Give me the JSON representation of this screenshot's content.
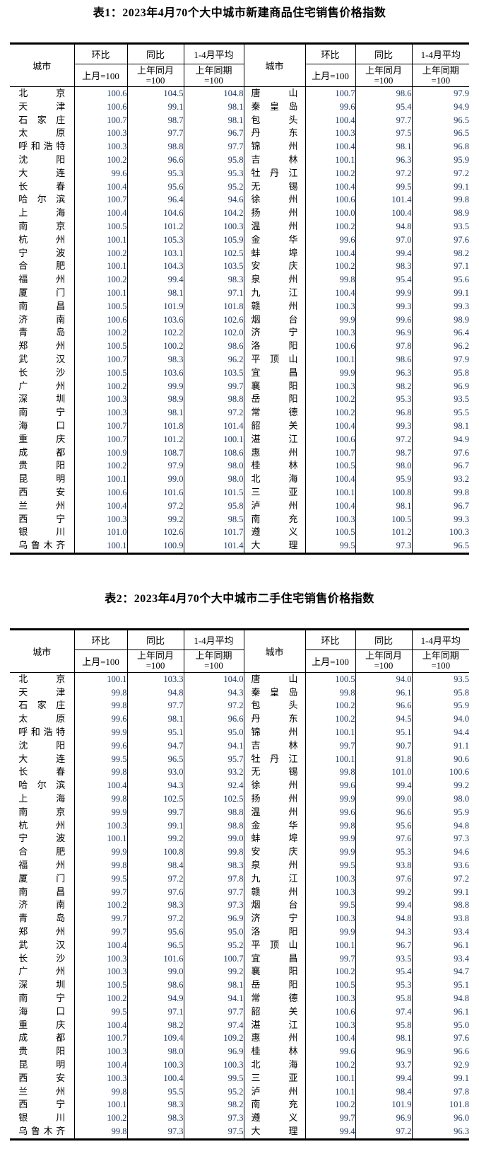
{
  "colors": {
    "background": "#ffffff",
    "text": "#000000",
    "number": "#1f3864",
    "border": "#000000"
  },
  "header_labels": {
    "city": "城市",
    "mom": "环比",
    "yoy": "同比",
    "avg": "1-4月平均",
    "mom_base": "上月=100",
    "yoy_base_line1": "上年同月",
    "yoy_base_line2": "=100",
    "avg_base_line1": "上年同期",
    "avg_base_line2": "=100"
  },
  "tables": [
    {
      "title": "表1：2023年4月70个大中城市新建商品住宅销售价格指数",
      "rows": [
        [
          "北京",
          "100.6",
          "104.5",
          "104.8",
          "唐山",
          "100.7",
          "98.6",
          "97.9"
        ],
        [
          "天津",
          "100.6",
          "99.1",
          "98.1",
          "秦皇岛",
          "99.6",
          "95.4",
          "94.9"
        ],
        [
          "石家庄",
          "100.7",
          "98.7",
          "98.1",
          "包头",
          "100.4",
          "97.7",
          "96.5"
        ],
        [
          "太原",
          "100.3",
          "97.7",
          "96.7",
          "丹东",
          "100.3",
          "97.5",
          "96.5"
        ],
        [
          "呼和浩特",
          "100.3",
          "98.8",
          "97.7",
          "锦州",
          "100.4",
          "98.1",
          "96.8"
        ],
        [
          "沈阳",
          "100.2",
          "96.6",
          "95.8",
          "吉林",
          "100.1",
          "96.3",
          "95.9"
        ],
        [
          "大连",
          "99.6",
          "95.3",
          "95.3",
          "牡丹江",
          "100.2",
          "97.2",
          "97.2"
        ],
        [
          "长春",
          "100.4",
          "95.6",
          "95.2",
          "无锡",
          "100.4",
          "99.5",
          "99.1"
        ],
        [
          "哈尔滨",
          "100.7",
          "96.4",
          "94.6",
          "徐州",
          "100.6",
          "101.4",
          "99.8"
        ],
        [
          "上海",
          "100.4",
          "104.6",
          "104.2",
          "扬州",
          "100.0",
          "100.4",
          "98.9"
        ],
        [
          "南京",
          "100.5",
          "101.2",
          "100.3",
          "温州",
          "100.2",
          "94.8",
          "93.5"
        ],
        [
          "杭州",
          "100.1",
          "105.3",
          "105.9",
          "金华",
          "99.6",
          "97.0",
          "97.6"
        ],
        [
          "宁波",
          "100.2",
          "103.1",
          "102.5",
          "蚌埠",
          "100.4",
          "99.4",
          "98.2"
        ],
        [
          "合肥",
          "100.1",
          "104.3",
          "103.5",
          "安庆",
          "100.2",
          "98.3",
          "97.1"
        ],
        [
          "福州",
          "100.2",
          "99.4",
          "98.3",
          "泉州",
          "99.8",
          "95.4",
          "95.6"
        ],
        [
          "厦门",
          "100.1",
          "98.1",
          "97.1",
          "九江",
          "100.4",
          "99.9",
          "99.1"
        ],
        [
          "南昌",
          "100.5",
          "101.9",
          "101.8",
          "赣州",
          "100.3",
          "99.3",
          "99.3"
        ],
        [
          "济南",
          "100.6",
          "103.6",
          "102.6",
          "烟台",
          "99.9",
          "99.6",
          "98.9"
        ],
        [
          "青岛",
          "100.2",
          "102.2",
          "102.0",
          "济宁",
          "100.3",
          "96.9",
          "96.4"
        ],
        [
          "郑州",
          "100.5",
          "100.2",
          "98.6",
          "洛阳",
          "100.6",
          "97.8",
          "96.2"
        ],
        [
          "武汉",
          "100.7",
          "98.3",
          "96.2",
          "平顶山",
          "100.1",
          "98.6",
          "97.9"
        ],
        [
          "长沙",
          "100.5",
          "103.6",
          "103.5",
          "宜昌",
          "99.9",
          "96.3",
          "95.8"
        ],
        [
          "广州",
          "100.2",
          "99.9",
          "99.7",
          "襄阳",
          "100.3",
          "98.2",
          "96.9"
        ],
        [
          "深圳",
          "100.3",
          "98.9",
          "98.8",
          "岳阳",
          "100.2",
          "95.3",
          "93.5"
        ],
        [
          "南宁",
          "100.3",
          "98.1",
          "97.2",
          "常德",
          "100.2",
          "96.8",
          "95.5"
        ],
        [
          "海口",
          "100.7",
          "101.8",
          "101.4",
          "韶关",
          "100.4",
          "99.3",
          "98.1"
        ],
        [
          "重庆",
          "100.7",
          "101.2",
          "100.1",
          "湛江",
          "100.6",
          "97.2",
          "94.9"
        ],
        [
          "成都",
          "100.9",
          "108.7",
          "108.6",
          "惠州",
          "100.7",
          "98.7",
          "97.6"
        ],
        [
          "贵阳",
          "100.2",
          "97.9",
          "98.0",
          "桂林",
          "100.5",
          "98.0",
          "96.7"
        ],
        [
          "昆明",
          "100.1",
          "99.0",
          "98.0",
          "北海",
          "100.4",
          "95.9",
          "93.2"
        ],
        [
          "西安",
          "100.6",
          "101.6",
          "101.5",
          "三亚",
          "100.1",
          "100.8",
          "99.8"
        ],
        [
          "兰州",
          "100.4",
          "97.2",
          "95.8",
          "泸州",
          "100.4",
          "98.1",
          "96.7"
        ],
        [
          "西宁",
          "100.3",
          "99.2",
          "98.5",
          "南充",
          "100.3",
          "100.5",
          "99.3"
        ],
        [
          "银川",
          "101.0",
          "102.6",
          "101.7",
          "遵义",
          "100.5",
          "101.2",
          "100.3"
        ],
        [
          "乌鲁木齐",
          "100.1",
          "100.9",
          "101.4",
          "大理",
          "99.5",
          "97.3",
          "96.5"
        ]
      ]
    },
    {
      "title": "表2：2023年4月70个大中城市二手住宅销售价格指数",
      "rows": [
        [
          "北京",
          "100.1",
          "103.3",
          "104.0",
          "唐山",
          "100.5",
          "94.0",
          "93.5"
        ],
        [
          "天津",
          "99.8",
          "94.8",
          "94.3",
          "秦皇岛",
          "99.8",
          "96.1",
          "95.8"
        ],
        [
          "石家庄",
          "99.8",
          "97.7",
          "97.2",
          "包头",
          "100.2",
          "96.6",
          "95.9"
        ],
        [
          "太原",
          "99.6",
          "98.1",
          "96.6",
          "丹东",
          "100.2",
          "94.5",
          "94.0"
        ],
        [
          "呼和浩特",
          "99.9",
          "95.1",
          "95.0",
          "锦州",
          "100.1",
          "95.1",
          "94.4"
        ],
        [
          "沈阳",
          "99.6",
          "94.7",
          "94.1",
          "吉林",
          "99.7",
          "90.7",
          "91.1"
        ],
        [
          "大连",
          "99.5",
          "96.5",
          "95.7",
          "牡丹江",
          "100.1",
          "91.8",
          "90.6"
        ],
        [
          "长春",
          "99.8",
          "93.0",
          "93.2",
          "无锡",
          "99.8",
          "101.0",
          "100.6"
        ],
        [
          "哈尔滨",
          "100.4",
          "94.3",
          "92.4",
          "徐州",
          "99.6",
          "99.4",
          "99.2"
        ],
        [
          "上海",
          "99.8",
          "102.5",
          "102.5",
          "扬州",
          "99.9",
          "99.0",
          "98.0"
        ],
        [
          "南京",
          "99.9",
          "99.7",
          "98.8",
          "温州",
          "99.6",
          "96.6",
          "95.9"
        ],
        [
          "杭州",
          "100.3",
          "99.1",
          "98.8",
          "金华",
          "99.8",
          "95.6",
          "94.8"
        ],
        [
          "宁波",
          "100.1",
          "99.2",
          "99.0",
          "蚌埠",
          "99.9",
          "97.6",
          "97.3"
        ],
        [
          "合肥",
          "99.9",
          "100.8",
          "99.8",
          "安庆",
          "99.9",
          "95.3",
          "94.6"
        ],
        [
          "福州",
          "99.8",
          "98.4",
          "98.3",
          "泉州",
          "99.5",
          "93.8",
          "93.6"
        ],
        [
          "厦门",
          "99.5",
          "97.2",
          "97.8",
          "九江",
          "100.3",
          "97.6",
          "97.2"
        ],
        [
          "南昌",
          "99.7",
          "97.6",
          "97.7",
          "赣州",
          "100.3",
          "99.2",
          "99.1"
        ],
        [
          "济南",
          "100.2",
          "98.3",
          "97.3",
          "烟台",
          "99.5",
          "99.4",
          "98.8"
        ],
        [
          "青岛",
          "99.7",
          "97.2",
          "96.9",
          "济宁",
          "100.3",
          "94.8",
          "93.8"
        ],
        [
          "郑州",
          "99.7",
          "95.6",
          "95.0",
          "洛阳",
          "99.9",
          "94.3",
          "93.4"
        ],
        [
          "武汉",
          "100.4",
          "96.5",
          "95.2",
          "平顶山",
          "100.1",
          "96.7",
          "96.1"
        ],
        [
          "长沙",
          "100.3",
          "101.6",
          "100.7",
          "宜昌",
          "99.7",
          "93.5",
          "93.4"
        ],
        [
          "广州",
          "100.3",
          "99.0",
          "99.2",
          "襄阳",
          "100.2",
          "95.4",
          "94.7"
        ],
        [
          "深圳",
          "100.5",
          "98.6",
          "98.1",
          "岳阳",
          "100.5",
          "95.3",
          "95.1"
        ],
        [
          "南宁",
          "100.2",
          "94.9",
          "94.1",
          "常德",
          "100.3",
          "95.8",
          "94.8"
        ],
        [
          "海口",
          "99.5",
          "97.1",
          "97.7",
          "韶关",
          "100.6",
          "97.4",
          "96.1"
        ],
        [
          "重庆",
          "100.4",
          "98.2",
          "97.4",
          "湛江",
          "100.3",
          "95.8",
          "95.0"
        ],
        [
          "成都",
          "100.7",
          "109.4",
          "109.2",
          "惠州",
          "100.4",
          "98.1",
          "97.6"
        ],
        [
          "贵阳",
          "100.3",
          "98.0",
          "96.9",
          "桂林",
          "99.6",
          "96.9",
          "96.6"
        ],
        [
          "昆明",
          "100.4",
          "100.3",
          "100.3",
          "北海",
          "100.2",
          "93.7",
          "92.9"
        ],
        [
          "西安",
          "100.3",
          "100.4",
          "99.5",
          "三亚",
          "100.1",
          "99.4",
          "99.1"
        ],
        [
          "兰州",
          "99.8",
          "95.5",
          "95.2",
          "泸州",
          "100.1",
          "98.4",
          "97.8"
        ],
        [
          "西宁",
          "100.1",
          "98.3",
          "98.2",
          "南充",
          "100.2",
          "101.9",
          "101.8"
        ],
        [
          "银川",
          "100.2",
          "98.3",
          "97.3",
          "遵义",
          "99.7",
          "96.9",
          "96.0"
        ],
        [
          "乌鲁木齐",
          "99.8",
          "97.3",
          "97.5",
          "大理",
          "99.4",
          "97.2",
          "96.3"
        ]
      ]
    }
  ]
}
